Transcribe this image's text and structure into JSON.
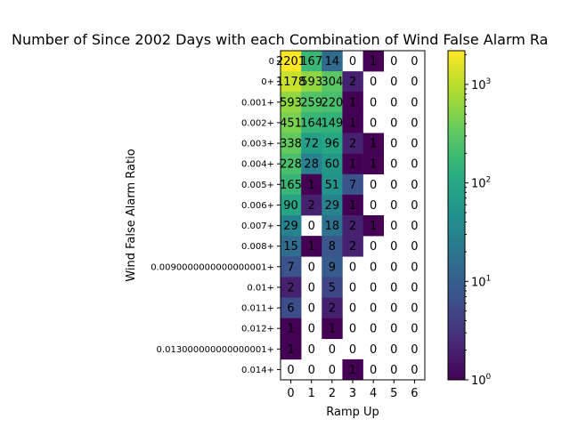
{
  "chart_data": {
    "type": "heatmap",
    "title": "Number of Since 2002 Days with each Combination of Wind False Alarm Ra",
    "xlabel": "Ramp Up",
    "ylabel": "Wind False Alarm Ratio",
    "x_ticks": [
      "0",
      "1",
      "2",
      "3",
      "4",
      "5",
      "6"
    ],
    "y_ticks": [
      "0",
      "0+",
      "0.001+",
      "0.002+",
      "0.003+",
      "0.004+",
      "0.005+",
      "0.006+",
      "0.007+",
      "0.008+",
      "0.0090000000000000001+",
      "0.01+",
      "0.011+",
      "0.012+",
      "0.013000000000000001+",
      "0.014+"
    ],
    "values": [
      [
        2201,
        167,
        14,
        0,
        1,
        0,
        0
      ],
      [
        1178,
        593,
        304,
        2,
        0,
        0,
        0
      ],
      [
        593,
        259,
        220,
        1,
        0,
        0,
        0
      ],
      [
        451,
        164,
        149,
        1,
        0,
        0,
        0
      ],
      [
        338,
        72,
        96,
        2,
        1,
        0,
        0
      ],
      [
        228,
        28,
        60,
        1,
        1,
        0,
        0
      ],
      [
        165,
        1,
        51,
        7,
        0,
        0,
        0
      ],
      [
        90,
        2,
        29,
        1,
        0,
        0,
        0
      ],
      [
        29,
        0,
        18,
        2,
        1,
        0,
        0
      ],
      [
        15,
        1,
        8,
        2,
        0,
        0,
        0
      ],
      [
        7,
        0,
        9,
        0,
        0,
        0,
        0
      ],
      [
        2,
        0,
        5,
        0,
        0,
        0,
        0
      ],
      [
        6,
        0,
        2,
        0,
        0,
        0,
        0
      ],
      [
        1,
        0,
        1,
        0,
        0,
        0,
        0
      ],
      [
        1,
        0,
        0,
        0,
        0,
        0,
        0
      ],
      [
        0,
        0,
        0,
        1,
        0,
        0,
        0
      ]
    ],
    "colorbar": {
      "scale": "log",
      "range": [
        1,
        2201
      ],
      "colormap": "viridis",
      "tick_values": [
        1,
        10,
        100,
        1000
      ],
      "tick_labels": [
        "10",
        "10",
        "10",
        "10"
      ],
      "tick_exponents": [
        "0",
        "1",
        "2",
        "3"
      ]
    }
  }
}
